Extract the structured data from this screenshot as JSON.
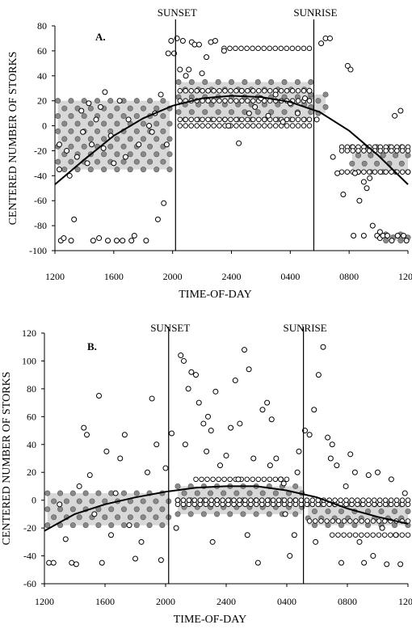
{
  "chart_data": [
    {
      "type": "scatter",
      "panel_label": "A.",
      "xlabel": "TIME-OF-DAY",
      "ylabel": "CENTERED NUMBER OF STORKS",
      "ylim": [
        -100,
        80
      ],
      "y_ticks": [
        "80",
        "60",
        "40",
        "20",
        "0",
        "-20",
        "-40",
        "-60",
        "-80",
        "-100"
      ],
      "x_hours_range": [
        12,
        36
      ],
      "x_ticks": [
        {
          "label": "1200",
          "hour": 12
        },
        {
          "label": "1600",
          "hour": 16
        },
        {
          "label": "2000",
          "hour": 20
        },
        {
          "label": "2400",
          "hour": 24
        },
        {
          "label": "0400",
          "hour": 28
        },
        {
          "label": "0800",
          "hour": 32
        },
        {
          "label": "1200",
          "hour": 36
        }
      ],
      "vlines": [
        {
          "label": "SUNSET",
          "hour": 20.2
        },
        {
          "label": "SUNRISE",
          "hour": 29.6
        }
      ],
      "trend_points": [
        [
          12,
          -47
        ],
        [
          14,
          -27
        ],
        [
          16,
          -8
        ],
        [
          18,
          6
        ],
        [
          20,
          16
        ],
        [
          22,
          22
        ],
        [
          24,
          24
        ],
        [
          26,
          23
        ],
        [
          28,
          19
        ],
        [
          30,
          11
        ],
        [
          32,
          -4
        ],
        [
          34,
          -24
        ],
        [
          36,
          -47
        ]
      ],
      "points": [
        [
          12.3,
          -15
        ],
        [
          12.3,
          -35
        ],
        [
          12.4,
          -92
        ],
        [
          12.6,
          -90
        ],
        [
          12.8,
          -20
        ],
        [
          13,
          -40
        ],
        [
          13.1,
          -92
        ],
        [
          13.3,
          -75
        ],
        [
          13.5,
          -25
        ],
        [
          13.8,
          12
        ],
        [
          13.9,
          -5
        ],
        [
          14.2,
          -30
        ],
        [
          14.3,
          18
        ],
        [
          14.5,
          -15
        ],
        [
          14.6,
          -92
        ],
        [
          14.8,
          5
        ],
        [
          15,
          -90
        ],
        [
          15.1,
          15
        ],
        [
          15.3,
          -18
        ],
        [
          15.4,
          27
        ],
        [
          15.6,
          -92
        ],
        [
          15.8,
          -8
        ],
        [
          16,
          -30
        ],
        [
          16.2,
          -92
        ],
        [
          16.4,
          20
        ],
        [
          16.6,
          -92
        ],
        [
          16.8,
          -25
        ],
        [
          17,
          5
        ],
        [
          17.2,
          -92
        ],
        [
          17.4,
          -88
        ],
        [
          17.7,
          -15
        ],
        [
          18.2,
          -92
        ],
        [
          18.4,
          0
        ],
        [
          18.6,
          -5
        ],
        [
          18.8,
          10
        ],
        [
          19,
          -75
        ],
        [
          19.2,
          25
        ],
        [
          19.4,
          -62
        ],
        [
          19.6,
          -15
        ],
        [
          19.7,
          58
        ],
        [
          19.9,
          68
        ],
        [
          20.1,
          58
        ],
        [
          20.3,
          70
        ],
        [
          20.5,
          45
        ],
        [
          20.7,
          68
        ],
        [
          20.9,
          40
        ],
        [
          21.1,
          45
        ],
        [
          21.3,
          67
        ],
        [
          21.5,
          65
        ],
        [
          21.8,
          65
        ],
        [
          22,
          42
        ],
        [
          22.3,
          55
        ],
        [
          22.6,
          67
        ],
        [
          22.9,
          68
        ],
        [
          23.5,
          60
        ],
        [
          23.8,
          0
        ],
        [
          24.5,
          -14
        ],
        [
          24.7,
          28
        ],
        [
          25.2,
          10
        ],
        [
          25.6,
          15
        ],
        [
          26,
          22
        ],
        [
          26.5,
          8
        ],
        [
          27,
          25
        ],
        [
          27.5,
          3
        ],
        [
          28,
          18
        ],
        [
          28.5,
          10
        ],
        [
          29,
          22
        ],
        [
          29.3,
          28
        ],
        [
          29.8,
          5
        ],
        [
          30.1,
          66
        ],
        [
          30.4,
          70
        ],
        [
          30.7,
          70
        ],
        [
          30.9,
          -25
        ],
        [
          31.2,
          -38
        ],
        [
          31.6,
          -55
        ],
        [
          31.9,
          48
        ],
        [
          32.1,
          45
        ],
        [
          32.4,
          -38
        ],
        [
          32.7,
          -60
        ],
        [
          33,
          -45
        ],
        [
          33.2,
          -50
        ],
        [
          33.4,
          -42
        ],
        [
          33.6,
          -80
        ],
        [
          33.9,
          -88
        ],
        [
          34.1,
          -90
        ],
        [
          34.3,
          -88
        ],
        [
          34.6,
          -88
        ],
        [
          34.9,
          -92
        ],
        [
          35.1,
          8
        ],
        [
          35.3,
          -88
        ],
        [
          35.5,
          12
        ],
        [
          35.7,
          -88
        ],
        [
          35.9,
          -92
        ],
        [
          32.3,
          -88
        ],
        [
          33,
          -88
        ],
        [
          34.1,
          -85
        ]
      ],
      "bands": [
        {
          "x": [
            12.2,
            19.8
          ],
          "y": [
            -35,
            20
          ]
        },
        {
          "x": [
            20.4,
            29.4
          ],
          "y": [
            5,
            35
          ]
        },
        {
          "x": [
            29.4,
            30.4
          ],
          "y": [
            10,
            25
          ]
        },
        {
          "x": [
            32.2,
            36
          ],
          "y": [
            -37,
            -17
          ]
        },
        {
          "x": [
            34.5,
            36
          ],
          "y": [
            -92,
            -87
          ]
        }
      ],
      "hlines": [
        {
          "y": 62,
          "x": [
            23.5,
            29.3
          ]
        },
        {
          "y": 28,
          "x": [
            20.5,
            29.3
          ]
        },
        {
          "y": 20,
          "x": [
            20.5,
            29.3
          ]
        },
        {
          "y": 5,
          "x": [
            20.5,
            29.3
          ]
        },
        {
          "y": 0,
          "x": [
            20.5,
            29.3
          ]
        },
        {
          "y": -17,
          "x": [
            31.5,
            36
          ]
        },
        {
          "y": -37,
          "x": [
            31.5,
            36
          ]
        },
        {
          "y": -20,
          "x": [
            31.5,
            36
          ]
        }
      ]
    },
    {
      "type": "scatter",
      "panel_label": "B.",
      "xlabel": "TIME-OF-DAY",
      "ylabel": "CENTERED NUMBER OF STORKS",
      "ylim": [
        -60,
        120
      ],
      "y_ticks": [
        "120",
        "100",
        "80",
        "60",
        "40",
        "20",
        "0",
        "-20",
        "-40",
        "-60"
      ],
      "x_hours_range": [
        12,
        36
      ],
      "x_ticks": [
        {
          "label": "1200",
          "hour": 12
        },
        {
          "label": "1600",
          "hour": 16
        },
        {
          "label": "2000",
          "hour": 20
        },
        {
          "label": "2400",
          "hour": 24
        },
        {
          "label": "0400",
          "hour": 28
        },
        {
          "label": "0800",
          "hour": 32
        },
        {
          "label": "1200",
          "hour": 36
        }
      ],
      "vlines": [
        {
          "label": "SUNSET",
          "hour": 20.2
        },
        {
          "label": "SUNRISE",
          "hour": 29.1
        }
      ],
      "trend_points": [
        [
          12,
          -22
        ],
        [
          14,
          -10
        ],
        [
          16,
          -3
        ],
        [
          18,
          2
        ],
        [
          20,
          6
        ],
        [
          22,
          9
        ],
        [
          24,
          10
        ],
        [
          26,
          10
        ],
        [
          28,
          7
        ],
        [
          30,
          2
        ],
        [
          32,
          -6
        ],
        [
          34,
          -12
        ],
        [
          36,
          -17
        ]
      ],
      "points": [
        [
          12.3,
          -45
        ],
        [
          12.6,
          -45
        ],
        [
          13,
          -3
        ],
        [
          13.4,
          -28
        ],
        [
          13.8,
          -45
        ],
        [
          14.1,
          -46
        ],
        [
          14.3,
          10
        ],
        [
          14.6,
          52
        ],
        [
          14.8,
          47
        ],
        [
          15,
          18
        ],
        [
          15.3,
          -10
        ],
        [
          15.6,
          75
        ],
        [
          15.8,
          -45
        ],
        [
          16.1,
          35
        ],
        [
          16.4,
          -25
        ],
        [
          16.7,
          5
        ],
        [
          17,
          30
        ],
        [
          17.3,
          47
        ],
        [
          17.6,
          -18
        ],
        [
          18,
          -42
        ],
        [
          18.4,
          -30
        ],
        [
          18.8,
          20
        ],
        [
          19.1,
          73
        ],
        [
          19.4,
          40
        ],
        [
          19.7,
          -43
        ],
        [
          20,
          23
        ],
        [
          20.4,
          48
        ],
        [
          20.7,
          -20
        ],
        [
          21,
          104
        ],
        [
          21.2,
          100
        ],
        [
          21.5,
          80
        ],
        [
          21.7,
          92
        ],
        [
          22,
          90
        ],
        [
          22.2,
          70
        ],
        [
          22.5,
          55
        ],
        [
          22.8,
          60
        ],
        [
          23,
          50
        ],
        [
          23.3,
          78
        ],
        [
          23.6,
          25
        ],
        [
          24,
          32
        ],
        [
          24.3,
          52
        ],
        [
          24.6,
          86
        ],
        [
          24.9,
          55
        ],
        [
          25.2,
          108
        ],
        [
          25.5,
          94
        ],
        [
          25.8,
          30
        ],
        [
          26.1,
          -45
        ],
        [
          26.4,
          65
        ],
        [
          26.7,
          70
        ],
        [
          27,
          58
        ],
        [
          27.3,
          30
        ],
        [
          27.6,
          15
        ],
        [
          27.9,
          -10
        ],
        [
          28.2,
          -40
        ],
        [
          28.5,
          -25
        ],
        [
          28.8,
          35
        ],
        [
          29.2,
          50
        ],
        [
          29.5,
          47
        ],
        [
          29.8,
          65
        ],
        [
          30.1,
          90
        ],
        [
          30.4,
          110
        ],
        [
          30.7,
          45
        ],
        [
          31,
          40
        ],
        [
          31.3,
          25
        ],
        [
          31.6,
          -45
        ],
        [
          31.9,
          10
        ],
        [
          32.2,
          33
        ],
        [
          32.5,
          20
        ],
        [
          32.8,
          -30
        ],
        [
          33.1,
          -45
        ],
        [
          33.4,
          18
        ],
        [
          33.7,
          -40
        ],
        [
          34,
          20
        ],
        [
          34.3,
          -20
        ],
        [
          34.6,
          -46
        ],
        [
          34.9,
          15
        ],
        [
          35.2,
          -25
        ],
        [
          35.5,
          -46
        ],
        [
          35.8,
          5
        ],
        [
          21.3,
          40
        ],
        [
          22.7,
          35
        ],
        [
          24.8,
          15
        ],
        [
          26.9,
          25
        ],
        [
          28.7,
          20
        ],
        [
          30.9,
          30
        ],
        [
          23.1,
          -30
        ],
        [
          25.4,
          -25
        ],
        [
          27.8,
          12
        ],
        [
          29.9,
          -30
        ]
      ],
      "bands": [
        {
          "x": [
            12.2,
            20.2
          ],
          "y": [
            -18,
            5
          ]
        },
        {
          "x": [
            20.8,
            29
          ],
          "y": [
            -10,
            10
          ]
        },
        {
          "x": [
            29.4,
            36
          ],
          "y": [
            -18,
            -3
          ]
        }
      ],
      "hlines": [
        {
          "y": -3,
          "x": [
            20.8,
            36
          ]
        },
        {
          "y": 15,
          "x": [
            22,
            28
          ]
        },
        {
          "y": 0,
          "x": [
            20.8,
            36
          ]
        },
        {
          "y": -15,
          "x": [
            29.5,
            36
          ]
        },
        {
          "y": -25,
          "x": [
            31,
            36
          ]
        }
      ]
    }
  ]
}
